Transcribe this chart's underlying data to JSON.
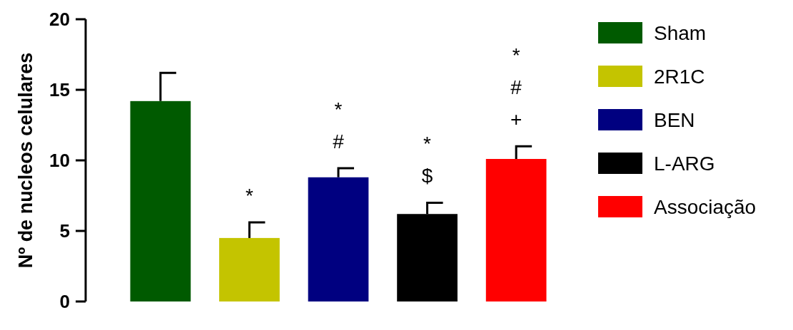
{
  "chart_data": {
    "type": "bar",
    "ylabel": "Nº de nucleos celulares",
    "categories": [
      null,
      null,
      null,
      null,
      null
    ],
    "stacked": true,
    "series": [
      {
        "name": "Sham",
        "color": "#005a00",
        "values": [
          14.2,
          null,
          null,
          null,
          null
        ],
        "errors": [
          2.0,
          null,
          null,
          null,
          null
        ]
      },
      {
        "name": "2R1C",
        "color": "#c4c400",
        "values": [
          null,
          4.5,
          null,
          null,
          null
        ],
        "errors": [
          null,
          1.1,
          null,
          null,
          null
        ],
        "value_labels": [
          null,
          "*",
          null,
          null,
          null
        ]
      },
      {
        "name": "BEN",
        "color": "#000080",
        "values": [
          null,
          null,
          8.8,
          null,
          null
        ],
        "errors": [
          null,
          null,
          0.65,
          null,
          null
        ],
        "value_labels": [
          null,
          null,
          "*\n#",
          null,
          null
        ]
      },
      {
        "name": "L-ARG",
        "color": "#000000",
        "values": [
          null,
          null,
          null,
          6.2,
          null
        ],
        "errors": [
          null,
          null,
          null,
          0.8,
          null
        ],
        "value_labels": [
          null,
          null,
          null,
          "*\n$",
          null
        ]
      },
      {
        "name": "Associação",
        "color": "#ff0000",
        "values": [
          null,
          null,
          null,
          null,
          10.1
        ],
        "errors": [
          null,
          null,
          null,
          null,
          0.9
        ],
        "value_labels": [
          null,
          null,
          null,
          null,
          "*\n#\n+"
        ]
      }
    ],
    "ylim": [
      0,
      20
    ],
    "yticks": [
      0,
      5,
      10,
      15,
      20
    ],
    "legend": "right",
    "tick_labels": "y"
  }
}
